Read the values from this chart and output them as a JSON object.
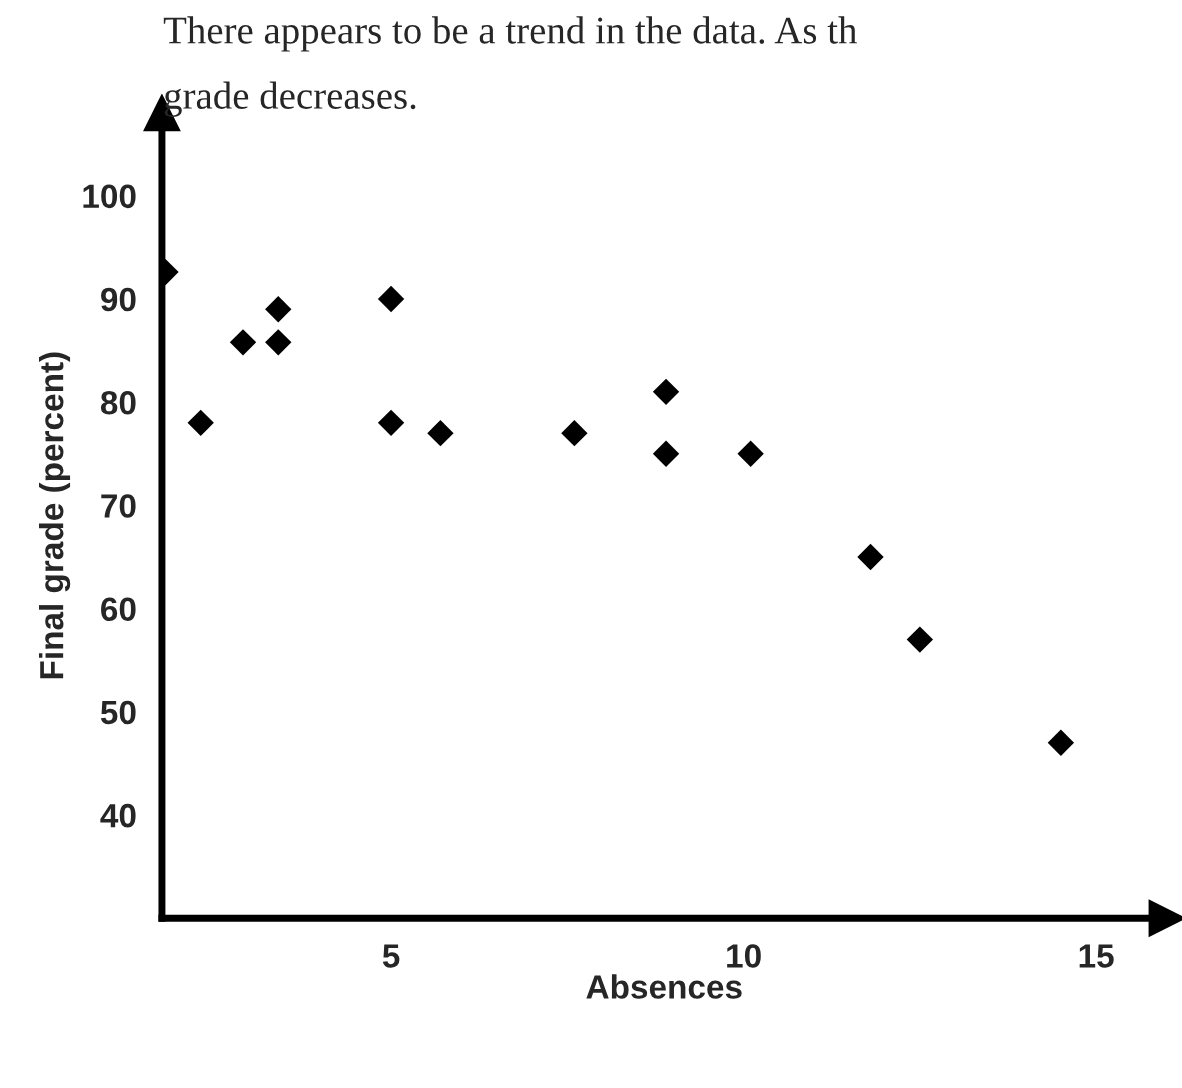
{
  "chart_data": {
    "type": "scatter",
    "xlabel": "Absences",
    "ylabel": "Final grade (percent)",
    "annotations": [
      "There appears to be a trend in the data. As th",
      "grade decreases."
    ],
    "x": [
      1.8,
      2.3,
      2.9,
      3.4,
      3.4,
      5,
      5,
      5.7,
      7.6,
      8.9,
      8.9,
      10.1,
      11.8,
      12.5,
      14.5
    ],
    "series": [
      {
        "color": "#000000",
        "values": [
          92.6,
          78,
          85.8,
          85.8,
          89,
          90,
          78,
          77,
          77,
          81,
          75,
          75,
          65,
          57,
          47
        ]
      }
    ],
    "xlim": [
      1.75,
      16
    ],
    "ylim": [
      30,
      108
    ],
    "xticks": [
      5,
      10,
      15
    ],
    "yticks": [
      40,
      50,
      60,
      70,
      80,
      90,
      100
    ],
    "marker": "diamond",
    "grid": false,
    "legend": false
  }
}
